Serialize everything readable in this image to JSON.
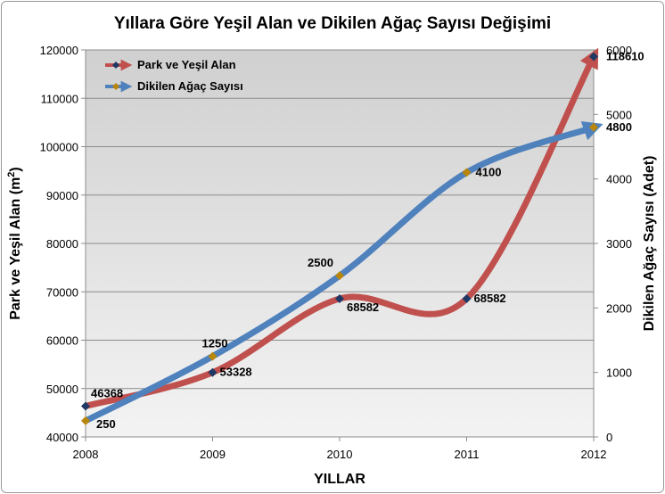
{
  "chart_data": {
    "type": "line",
    "title": "Yıllara Göre Yeşil Alan ve Dikilen Ağaç Sayısı Değişimi",
    "xlabel": "YILLAR",
    "ylabel_left_main": "Park ve Yeşil Alan (m",
    "ylabel_left_sup": "2",
    "ylabel_left_end": ")",
    "ylabel_right": "Dikilen Ağaç Sayısı (Adet)",
    "x": [
      2008,
      2009,
      2010,
      2011,
      2012
    ],
    "x_tick_labels": [
      "2008",
      "2009",
      "2010",
      "2011",
      "2012"
    ],
    "y_left_lim": [
      40000,
      120000
    ],
    "y_left_ticks": [
      "40000",
      "50000",
      "60000",
      "70000",
      "80000",
      "90000",
      "100000",
      "110000",
      "120000"
    ],
    "y_right_lim": [
      0,
      6000
    ],
    "y_right_ticks": [
      "0",
      "1000",
      "2000",
      "3000",
      "4000",
      "5000",
      "6000"
    ],
    "grid": true,
    "legend_position": "top-left",
    "series": [
      {
        "name": "Park ve Yeşil Alan",
        "axis": "left",
        "color": "#c0504d",
        "marker_color": "#1f3864",
        "values": [
          46368,
          53328,
          68582,
          68582,
          118610
        ],
        "labels": [
          "46368",
          "53328",
          "68582",
          "68582",
          "118610"
        ]
      },
      {
        "name": "Dikilen Ağaç Sayısı",
        "axis": "right",
        "color": "#4f81bd",
        "marker_color": "#b8860b",
        "values": [
          250,
          1250,
          2500,
          4100,
          4800
        ],
        "labels": [
          "250",
          "1250",
          "2500",
          "4100",
          "4800"
        ]
      }
    ]
  }
}
